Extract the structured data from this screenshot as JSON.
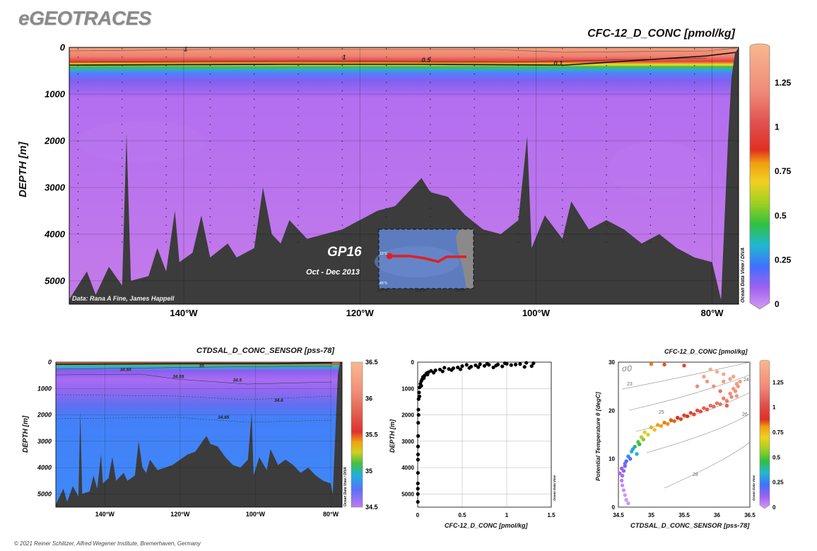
{
  "brand": "eGEOTRACES",
  "footer": "© 2021 Reiner Schlitzer, Alfred Wegener Institute, Bremerhaven, Germany",
  "colors": {
    "land": "#3c3c3c",
    "section_line": "#e0201e",
    "background_purple": "#c47be9"
  },
  "chart_data": [
    {
      "type": "heatmap",
      "title": "CFC-12_D_CONC [pmol/kg]",
      "ylabel": "DEPTH [m]",
      "xlabel": "",
      "x_ticks": [
        "140°W",
        "120°W",
        "100°W",
        "80°W"
      ],
      "x_tick_values": [
        -140,
        -120,
        -100,
        -80
      ],
      "xlim": [
        -153,
        -77
      ],
      "y_ticks": [
        "0",
        "1000",
        "2000",
        "3000",
        "4000",
        "5000"
      ],
      "y_tick_values": [
        0,
        1000,
        2000,
        3000,
        4000,
        5000
      ],
      "ylim": [
        0,
        5500
      ],
      "colorbar": {
        "ticks": [
          "0",
          "0.25",
          "0.5",
          "0.75",
          "1",
          "1.25"
        ],
        "tick_values": [
          0,
          0.25,
          0.5,
          0.75,
          1,
          1.25
        ],
        "range": [
          0,
          1.45
        ]
      },
      "contour_labels": [
        {
          "text": "1",
          "x": -140,
          "y": 80
        },
        {
          "text": "1",
          "x": -122,
          "y": 260
        },
        {
          "text": "0.5",
          "x": -113,
          "y": 320
        },
        {
          "text": "0.1",
          "x": -98,
          "y": 390
        }
      ],
      "annotations": {
        "section": "GP16",
        "dates": "Oct - Dec 2013",
        "credits": "Data: Rana A Fine, James Happell",
        "watermark": "Ocean Data View / DIVA"
      },
      "inset_map": {
        "lat_labels": [
          "15°S",
          "45°S"
        ],
        "lon_labels": [
          "160°W",
          "120°W",
          "80°W"
        ]
      }
    },
    {
      "type": "heatmap",
      "title": "CTDSAL_D_CONC_SENSOR [pss-78]",
      "ylabel": "DEPTH [m]",
      "xlabel": "",
      "x_ticks": [
        "140°W",
        "120°W",
        "100°W",
        "80°W"
      ],
      "x_tick_values": [
        -140,
        -120,
        -100,
        -80
      ],
      "xlim": [
        -153,
        -77
      ],
      "y_ticks": [
        "0",
        "1000",
        "2000",
        "3000",
        "4000",
        "5000"
      ],
      "y_tick_values": [
        0,
        1000,
        2000,
        3000,
        4000,
        5000
      ],
      "ylim": [
        0,
        5500
      ],
      "colorbar": {
        "ticks": [
          "34.5",
          "35",
          "35.5",
          "36",
          "36.5"
        ],
        "tick_values": [
          34.5,
          35,
          35.5,
          36,
          36.5
        ],
        "range": [
          34.5,
          36.5
        ]
      },
      "contour_labels": [
        {
          "text": "35",
          "x": -115,
          "y": 200
        },
        {
          "text": "34.65",
          "x": -136,
          "y": 330
        },
        {
          "text": "34.55",
          "x": -122,
          "y": 600
        },
        {
          "text": "34.5",
          "x": -106,
          "y": 740
        },
        {
          "text": "34.6",
          "x": -95,
          "y": 1500
        },
        {
          "text": "34.65",
          "x": -110,
          "y": 2150
        }
      ],
      "watermark": "Ocean Data View / DIVA"
    },
    {
      "type": "scatter",
      "title": "",
      "xlabel": "CFC-12_D_CONC [pmol/kg]",
      "ylabel": "DEPTH [m]",
      "x_ticks": [
        "0",
        "0.5",
        "1",
        "1.5"
      ],
      "x_tick_values": [
        0,
        0.5,
        1,
        1.5
      ],
      "xlim": [
        0,
        1.5
      ],
      "y_ticks": [
        "0",
        "1000",
        "2000",
        "3000",
        "4000",
        "5000"
      ],
      "y_tick_values": [
        0,
        1000,
        2000,
        3000,
        4000,
        5000
      ],
      "ylim": [
        0,
        5500
      ],
      "grid": true,
      "watermark": "Ocean Data View",
      "points": [
        [
          1.28,
          150
        ],
        [
          1.2,
          180
        ],
        [
          1.1,
          90
        ],
        [
          1.0,
          60
        ],
        [
          0.95,
          160
        ],
        [
          0.9,
          90
        ],
        [
          0.85,
          200
        ],
        [
          0.8,
          100
        ],
        [
          0.75,
          140
        ],
        [
          0.7,
          80
        ],
        [
          0.65,
          120
        ],
        [
          0.6,
          170
        ],
        [
          0.55,
          100
        ],
        [
          0.5,
          150
        ],
        [
          0.45,
          200
        ],
        [
          0.4,
          230
        ],
        [
          0.35,
          260
        ],
        [
          0.3,
          210
        ],
        [
          0.25,
          280
        ],
        [
          0.2,
          310
        ],
        [
          0.15,
          330
        ],
        [
          0.12,
          380
        ],
        [
          0.1,
          420
        ],
        [
          0.08,
          500
        ],
        [
          0.06,
          560
        ],
        [
          0.05,
          650
        ],
        [
          0.04,
          720
        ],
        [
          0.03,
          820
        ],
        [
          0.02,
          960
        ],
        [
          0.015,
          1150
        ],
        [
          0.01,
          1400
        ],
        [
          0.008,
          1800
        ],
        [
          0.006,
          2300
        ],
        [
          0.005,
          2800
        ],
        [
          0.004,
          3200
        ],
        [
          0.003,
          3700
        ],
        [
          0.003,
          4200
        ],
        [
          0.002,
          4600
        ],
        [
          0.002,
          5000
        ],
        [
          0.002,
          5300
        ],
        [
          1.3,
          40
        ],
        [
          1.22,
          25
        ],
        [
          1.15,
          70
        ],
        [
          1.05,
          110
        ],
        [
          0.98,
          40
        ],
        [
          0.88,
          130
        ],
        [
          0.78,
          60
        ],
        [
          0.68,
          190
        ],
        [
          0.58,
          220
        ],
        [
          0.48,
          270
        ],
        [
          0.38,
          300
        ],
        [
          0.28,
          350
        ],
        [
          0.18,
          400
        ],
        [
          0.11,
          470
        ],
        [
          0.07,
          600
        ],
        [
          0.04,
          900
        ],
        [
          0.02,
          1300
        ],
        [
          0.01,
          2000
        ],
        [
          0.004,
          3500
        ],
        [
          0.002,
          4800
        ]
      ]
    },
    {
      "type": "scatter",
      "title": "CFC-12_D_CONC [pmol/kg]",
      "xlabel": "CTDSAL_D_CONC_SENSOR [pss-78]",
      "ylabel": "Potential Temperature θ [degC]",
      "x_ticks": [
        "34.5",
        "35",
        "35.5",
        "36",
        "36.5"
      ],
      "x_tick_values": [
        34.5,
        35,
        35.5,
        36,
        36.5
      ],
      "xlim": [
        34.5,
        36.5
      ],
      "y_ticks": [
        "0",
        "10",
        "20",
        "30"
      ],
      "y_tick_values": [
        0,
        10,
        20,
        30
      ],
      "ylim": [
        0,
        30
      ],
      "isopycnal_symbol": "σ0",
      "isopycnal_labels": [
        "23",
        "24",
        "25",
        "26",
        "28"
      ],
      "colorbar": {
        "ticks": [
          "0",
          "0.25",
          "0.5",
          "0.75",
          "1",
          "1.25"
        ],
        "tick_values": [
          0,
          0.25,
          0.5,
          0.75,
          1,
          1.25
        ],
        "range": [
          0,
          1.45
        ]
      },
      "watermark": "Ocean Data View",
      "points": [
        [
          34.65,
          0.8,
          0.01
        ],
        [
          34.62,
          1.5,
          0.01
        ],
        [
          34.6,
          2.5,
          0.01
        ],
        [
          34.58,
          3.5,
          0.02
        ],
        [
          34.56,
          4.5,
          0.03
        ],
        [
          34.55,
          5.5,
          0.05
        ],
        [
          34.56,
          6.5,
          0.08
        ],
        [
          34.58,
          7.5,
          0.12
        ],
        [
          34.6,
          8.5,
          0.18
        ],
        [
          34.62,
          9.5,
          0.25
        ],
        [
          34.65,
          10.5,
          0.3
        ],
        [
          34.7,
          11.5,
          0.4
        ],
        [
          34.75,
          12.5,
          0.5
        ],
        [
          34.8,
          13.5,
          0.6
        ],
        [
          34.85,
          14.5,
          0.7
        ],
        [
          34.9,
          15.5,
          0.78
        ],
        [
          35.0,
          16.5,
          0.85
        ],
        [
          35.1,
          17.0,
          0.9
        ],
        [
          35.2,
          17.5,
          0.95
        ],
        [
          35.3,
          18.0,
          1.0
        ],
        [
          35.4,
          18.5,
          1.05
        ],
        [
          35.5,
          19.0,
          1.08
        ],
        [
          35.6,
          19.5,
          1.1
        ],
        [
          35.7,
          20.0,
          1.12
        ],
        [
          35.8,
          20.5,
          1.15
        ],
        [
          35.9,
          21.0,
          1.18
        ],
        [
          36.0,
          21.5,
          1.2
        ],
        [
          36.1,
          22.5,
          1.22
        ],
        [
          36.2,
          23.5,
          1.25
        ],
        [
          36.25,
          24.5,
          1.3
        ],
        [
          36.3,
          25.5,
          1.32
        ],
        [
          36.2,
          26.5,
          1.35
        ],
        [
          36.1,
          27.5,
          1.38
        ],
        [
          35.9,
          28.5,
          1.4
        ],
        [
          35.8,
          27,
          1.35
        ],
        [
          35.7,
          25,
          1.25
        ],
        [
          36.05,
          24,
          1.2
        ],
        [
          36.15,
          21,
          1.15
        ],
        [
          36.3,
          23,
          1.3
        ],
        [
          35.5,
          29.3,
          1.1
        ],
        [
          35.2,
          29.5,
          1.0
        ],
        [
          35.0,
          29.6,
          0.95
        ],
        [
          34.52,
          7,
          0.09
        ],
        [
          34.55,
          8,
          0.11
        ],
        [
          34.6,
          9,
          0.15
        ],
        [
          34.68,
          10,
          0.22
        ],
        [
          34.72,
          12,
          0.35
        ],
        [
          34.78,
          11,
          0.42
        ],
        [
          34.82,
          13,
          0.55
        ],
        [
          34.88,
          14,
          0.65
        ],
        [
          34.95,
          15,
          0.72
        ],
        [
          35.05,
          16,
          0.8
        ],
        [
          35.15,
          16.8,
          0.88
        ],
        [
          35.25,
          17.2,
          0.92
        ],
        [
          35.35,
          17.8,
          0.98
        ],
        [
          35.45,
          18.2,
          1.02
        ],
        [
          35.55,
          18.8,
          1.06
        ],
        [
          35.65,
          19.2,
          1.09
        ],
        [
          35.75,
          19.8,
          1.11
        ],
        [
          35.85,
          20.2,
          1.14
        ],
        [
          35.95,
          20.8,
          1.17
        ],
        [
          36.05,
          21.3,
          1.19
        ],
        [
          36.15,
          22,
          1.21
        ],
        [
          36.22,
          22.8,
          1.24
        ],
        [
          36.28,
          24,
          1.28
        ],
        [
          36.32,
          25,
          1.31
        ],
        [
          36.35,
          26,
          1.34
        ],
        [
          36.25,
          27,
          1.36
        ],
        [
          36.0,
          28,
          1.39
        ],
        [
          35.85,
          26,
          1.3
        ],
        [
          35.95,
          25,
          1.27
        ],
        [
          36.1,
          26,
          1.33
        ]
      ]
    }
  ]
}
